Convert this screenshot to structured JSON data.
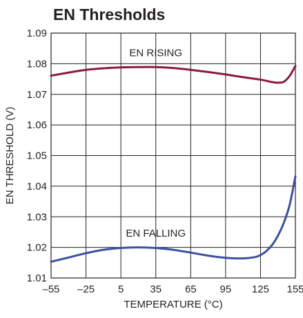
{
  "chart_data": {
    "type": "line",
    "title": "EN Thresholds",
    "xlabel": "TEMPERATURE (°C)",
    "ylabel": "EN THRESHOLD (V)",
    "xlim": [
      -55,
      155
    ],
    "ylim": [
      1.01,
      1.09
    ],
    "x_ticks": [
      -55,
      -25,
      5,
      35,
      65,
      95,
      125,
      155
    ],
    "x_tick_labels": [
      "–55",
      "–25",
      "5",
      "35",
      "65",
      "95",
      "125",
      "155"
    ],
    "y_ticks": [
      1.01,
      1.02,
      1.03,
      1.04,
      1.05,
      1.06,
      1.07,
      1.08,
      1.09
    ],
    "y_tick_labels": [
      "1.01",
      "1.02",
      "1.03",
      "1.04",
      "1.05",
      "1.06",
      "1.07",
      "1.08",
      "1.09"
    ],
    "grid": true,
    "series": [
      {
        "name": "EN RISING",
        "color": "#8b1a3a",
        "label_at": [
          35,
          1.0825
        ],
        "x": [
          -55,
          -40,
          -25,
          -10,
          5,
          20,
          35,
          50,
          65,
          80,
          95,
          110,
          125,
          135,
          140,
          145,
          150,
          155
        ],
        "y": [
          1.0761,
          1.0771,
          1.078,
          1.0785,
          1.0788,
          1.0789,
          1.0789,
          1.0786,
          1.078,
          1.0773,
          1.0765,
          1.0756,
          1.0748,
          1.074,
          1.0738,
          1.0741,
          1.076,
          1.0793
        ]
      },
      {
        "name": "EN FALLING",
        "color": "#3b4fa0",
        "label_at": [
          35,
          1.0235
        ],
        "x": [
          -55,
          -40,
          -25,
          -10,
          5,
          20,
          35,
          50,
          65,
          80,
          95,
          110,
          120,
          125,
          130,
          135,
          140,
          145,
          150,
          155
        ],
        "y": [
          1.0153,
          1.0167,
          1.0181,
          1.0192,
          1.0198,
          1.02,
          1.0198,
          1.0192,
          1.0183,
          1.0173,
          1.0166,
          1.0164,
          1.0168,
          1.0175,
          1.0188,
          1.0208,
          1.0238,
          1.028,
          1.0338,
          1.0432
        ]
      }
    ]
  }
}
